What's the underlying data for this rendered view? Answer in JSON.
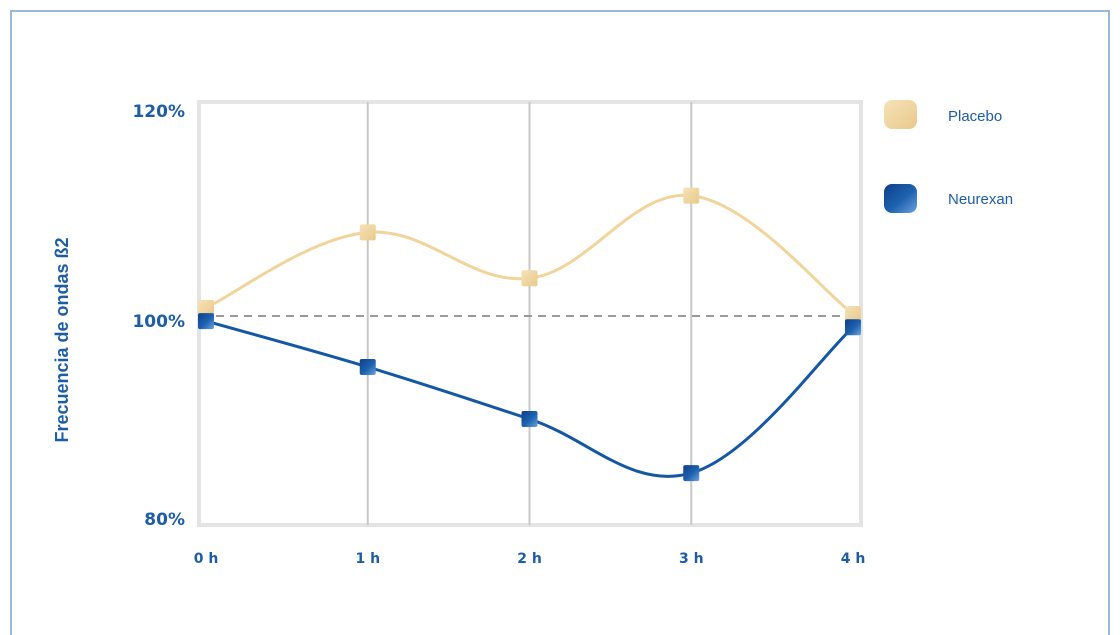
{
  "chart_data": {
    "type": "line",
    "ylabel": "Frecuencia de ondas ß2",
    "xlabel": "",
    "categories": [
      "0 h",
      "1 h",
      "2 h",
      "3 h",
      "4 h"
    ],
    "y_ticks": [
      "80%",
      "100%",
      "120%"
    ],
    "ylim": [
      80,
      120
    ],
    "reference_line": 100,
    "grid": "vertical",
    "legend_position": "right",
    "series": [
      {
        "name": "Placebo",
        "color": "#f0d49c",
        "values": [
          100.8,
          108.2,
          103.7,
          111.8,
          100.2
        ]
      },
      {
        "name": "Neurexan",
        "color": "#1458a4",
        "values": [
          99.5,
          95.0,
          89.9,
          84.6,
          98.9
        ]
      }
    ]
  }
}
